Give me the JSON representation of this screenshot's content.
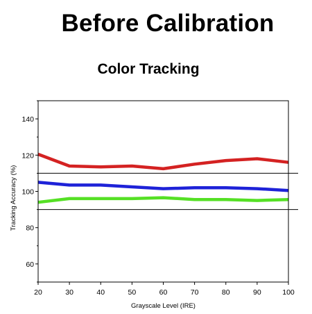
{
  "header": {
    "title": "Before Calibration",
    "subtitle": "Color Tracking"
  },
  "chart_data": {
    "type": "line",
    "xlabel": "Grayscale Level (IRE)",
    "ylabel": "Tracking Accuracy (%)",
    "x": [
      20,
      30,
      40,
      50,
      60,
      70,
      80,
      90,
      100
    ],
    "xlim": [
      20,
      100
    ],
    "ylim": [
      50,
      150
    ],
    "x_ticks": [
      20,
      30,
      40,
      50,
      60,
      70,
      80,
      90,
      100
    ],
    "y_ticks": [
      60,
      80,
      100,
      120,
      140
    ],
    "reference_lines": [
      110,
      90
    ],
    "grid": false,
    "legend": "none",
    "series": [
      {
        "color": "#d42222",
        "values": [
          120.5,
          114,
          113.5,
          114,
          112.5,
          115,
          117,
          118,
          116
        ]
      },
      {
        "color": "#1e22d8",
        "values": [
          105,
          103.5,
          103.5,
          102.5,
          101.5,
          102,
          102,
          101.5,
          100.5
        ]
      },
      {
        "color": "#55e025",
        "values": [
          94,
          96,
          96,
          96,
          96.5,
          95.5,
          95.5,
          95,
          95.5
        ]
      }
    ]
  }
}
